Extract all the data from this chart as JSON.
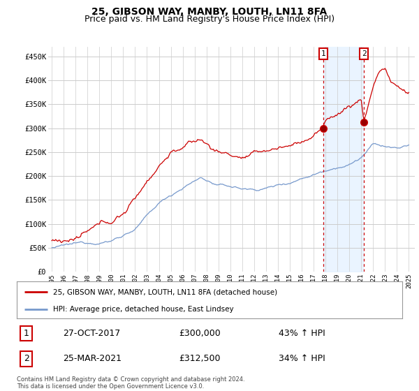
{
  "title": "25, GIBSON WAY, MANBY, LOUTH, LN11 8FA",
  "subtitle": "Price paid vs. HM Land Registry's House Price Index (HPI)",
  "ylim": [
    0,
    470000
  ],
  "yticks": [
    0,
    50000,
    100000,
    150000,
    200000,
    250000,
    300000,
    350000,
    400000,
    450000
  ],
  "ytick_labels": [
    "£0",
    "£50K",
    "£100K",
    "£150K",
    "£200K",
    "£250K",
    "£300K",
    "£350K",
    "£400K",
    "£450K"
  ],
  "sale1_date_label": "27-OCT-2017",
  "sale1_price": 300000,
  "sale1_price_label": "£300,000",
  "sale1_pct_label": "43% ↑ HPI",
  "sale1_x": 2017.82,
  "sale2_date_label": "25-MAR-2021",
  "sale2_price": 312500,
  "sale2_price_label": "£312,500",
  "sale2_pct_label": "34% ↑ HPI",
  "sale2_x": 2021.23,
  "vline_color": "#cc0000",
  "vline_style": "--",
  "shade_color": "#ddeeff",
  "red_line_color": "#cc0000",
  "blue_line_color": "#7799cc",
  "legend_label_red": "25, GIBSON WAY, MANBY, LOUTH, LN11 8FA (detached house)",
  "legend_label_blue": "HPI: Average price, detached house, East Lindsey",
  "footnote": "Contains HM Land Registry data © Crown copyright and database right 2024.\nThis data is licensed under the Open Government Licence v3.0.",
  "bg_color": "#ffffff",
  "grid_color": "#cccccc",
  "title_fontsize": 10,
  "subtitle_fontsize": 9
}
